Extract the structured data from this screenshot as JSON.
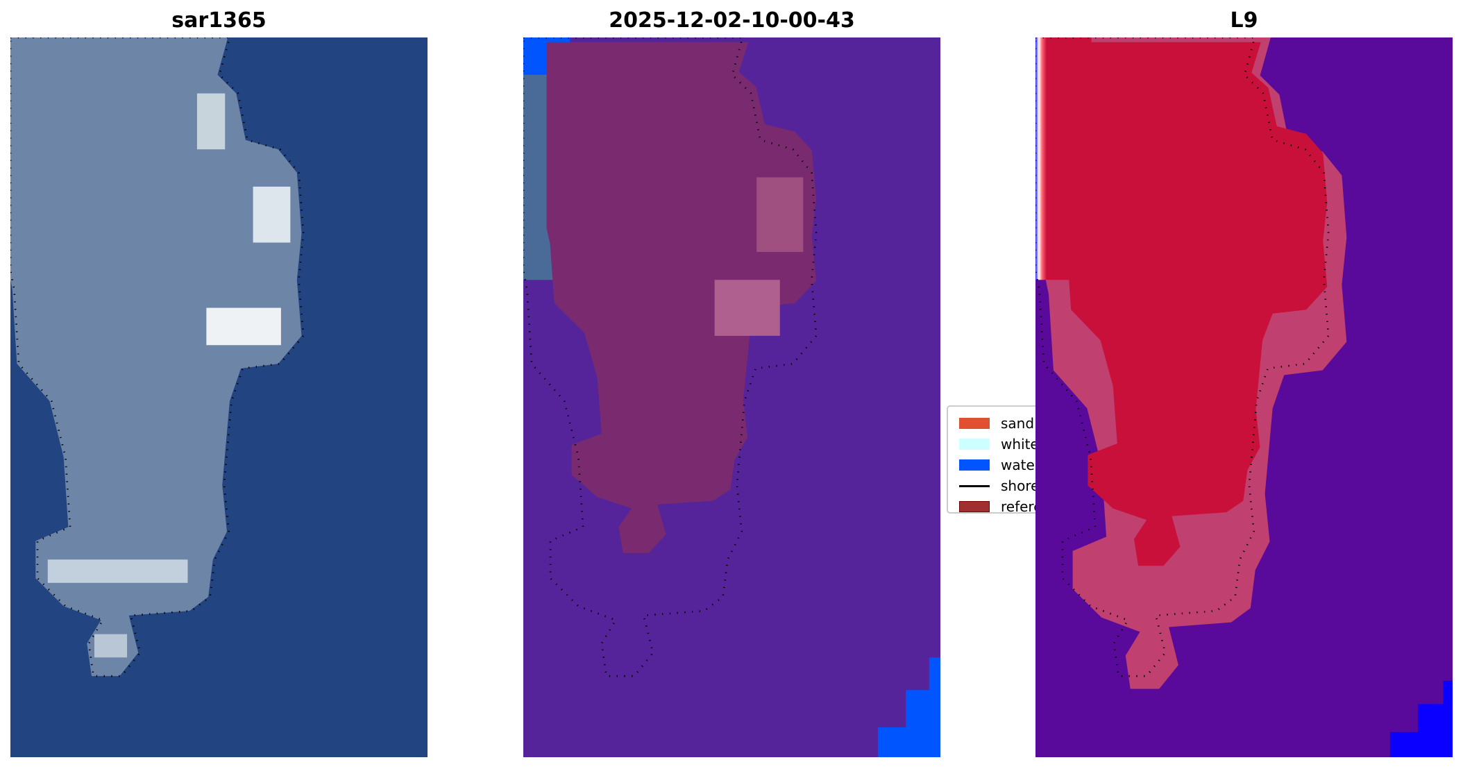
{
  "panels": [
    {
      "title": "sar1365"
    },
    {
      "title": "2025-12-02-10-00-43"
    },
    {
      "title": "L9"
    }
  ],
  "legend": {
    "items": [
      {
        "label": "sand",
        "color": "#e05030",
        "kind": "patch"
      },
      {
        "label": "whitew",
        "color": "#ccffff",
        "kind": "patch"
      },
      {
        "label": "water",
        "color": "#0055ff",
        "kind": "patch"
      },
      {
        "label": "shorel",
        "color": "#000000",
        "kind": "line"
      },
      {
        "label": "refere",
        "color": "#a03030",
        "kind": "patch"
      }
    ]
  },
  "colors": {
    "ocean_rgb": "#224480",
    "ocean_class": "#55249a",
    "ocean_l9": "#5a0a9a",
    "island_class": "#7a2a6e",
    "island_l9": "#c8103a"
  }
}
